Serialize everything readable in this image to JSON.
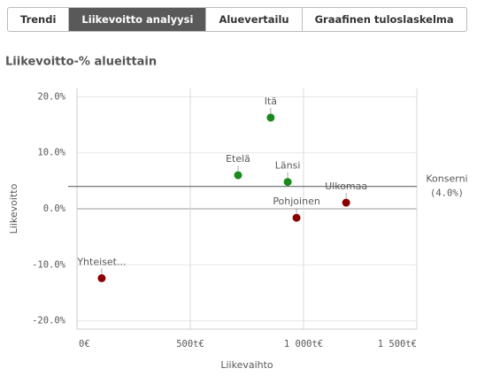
{
  "tabs": [
    "Trendi",
    "Liikevoitto analyysi",
    "Aluevertailu",
    "Graafinen tuloslaskelma"
  ],
  "active_tab": 1,
  "chart_data": {
    "type": "scatter",
    "title": "Liikevoitto-% alueittain",
    "x_label": "Liikevaihto",
    "y_label": "Liikevoitto",
    "labels": [
      "Itä",
      "Etelä",
      "Länsi",
      "Ulkomaa",
      "Pohjoinen",
      "Yhteiset..."
    ],
    "x": [
      855,
      711,
      930,
      1188,
      969,
      109
    ],
    "values": [
      16.3,
      6.0,
      4.8,
      1.1,
      -1.6,
      -12.4
    ],
    "colors": [
      "#1a8a1a",
      "#1a8a1a",
      "#1a8a1a",
      "#8b0000",
      "#8b0000",
      "#8b0000"
    ],
    "xlim": [
      0,
      1500
    ],
    "ylim": [
      -21.5,
      21.5
    ],
    "xticks": [
      {
        "value": 0,
        "label": "0€"
      },
      {
        "value": 500,
        "label": "500t€"
      },
      {
        "value": 1000,
        "label": "1 000t€"
      },
      {
        "value": 1500,
        "label": "1 500t€"
      }
    ],
    "yticks": [
      {
        "value": -20,
        "label": "-20.0%"
      },
      {
        "value": -10,
        "label": "-10.0%"
      },
      {
        "value": 0,
        "label": "0.0%"
      },
      {
        "value": 10,
        "label": "10.0%"
      },
      {
        "value": 20,
        "label": "20.0%"
      }
    ],
    "grid": true,
    "reference_line": {
      "label": "Konserni",
      "value": 4.0,
      "value_label": "(4.0%)"
    }
  }
}
